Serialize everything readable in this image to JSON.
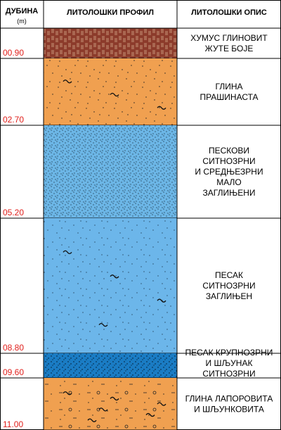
{
  "header": {
    "depth": "ДУБИНА",
    "unit": "(m)",
    "profile": "ЛИТОЛОШКИ ПРОФИЛ",
    "description": "ЛИТОЛОШКИ ОПИС"
  },
  "layers": [
    {
      "depth": "00.90",
      "description": [
        "ХУМУС ГЛИНОВИТ",
        "ЖУТЕ БОЈЕ"
      ]
    },
    {
      "depth": "02.70",
      "description": [
        "ГЛИНА",
        "ПРАШИНАСТА"
      ]
    },
    {
      "depth": "05.20",
      "description": [
        "ПЕСКОВИ",
        "СИТНОЗРНИ",
        "И СРЕДЊЕЗРНИ",
        "МАЛО",
        "ЗАГЛИЊЕНИ"
      ]
    },
    {
      "depth": "08.80",
      "description": [
        "ПЕСАК",
        "СИТНОЗРНИ",
        "ЗАГЛИЊЕН"
      ]
    },
    {
      "depth": "09.60",
      "description": [
        "ПЕСАК КРУПНОЗРНИ",
        "И ШЉУНАК",
        "СИТНОЗРНИ"
      ]
    },
    {
      "depth": "11.00",
      "description": [
        "ГЛИНА ЛАПОРОВИТА",
        "И ШЉУНКОВИТА"
      ]
    }
  ]
}
